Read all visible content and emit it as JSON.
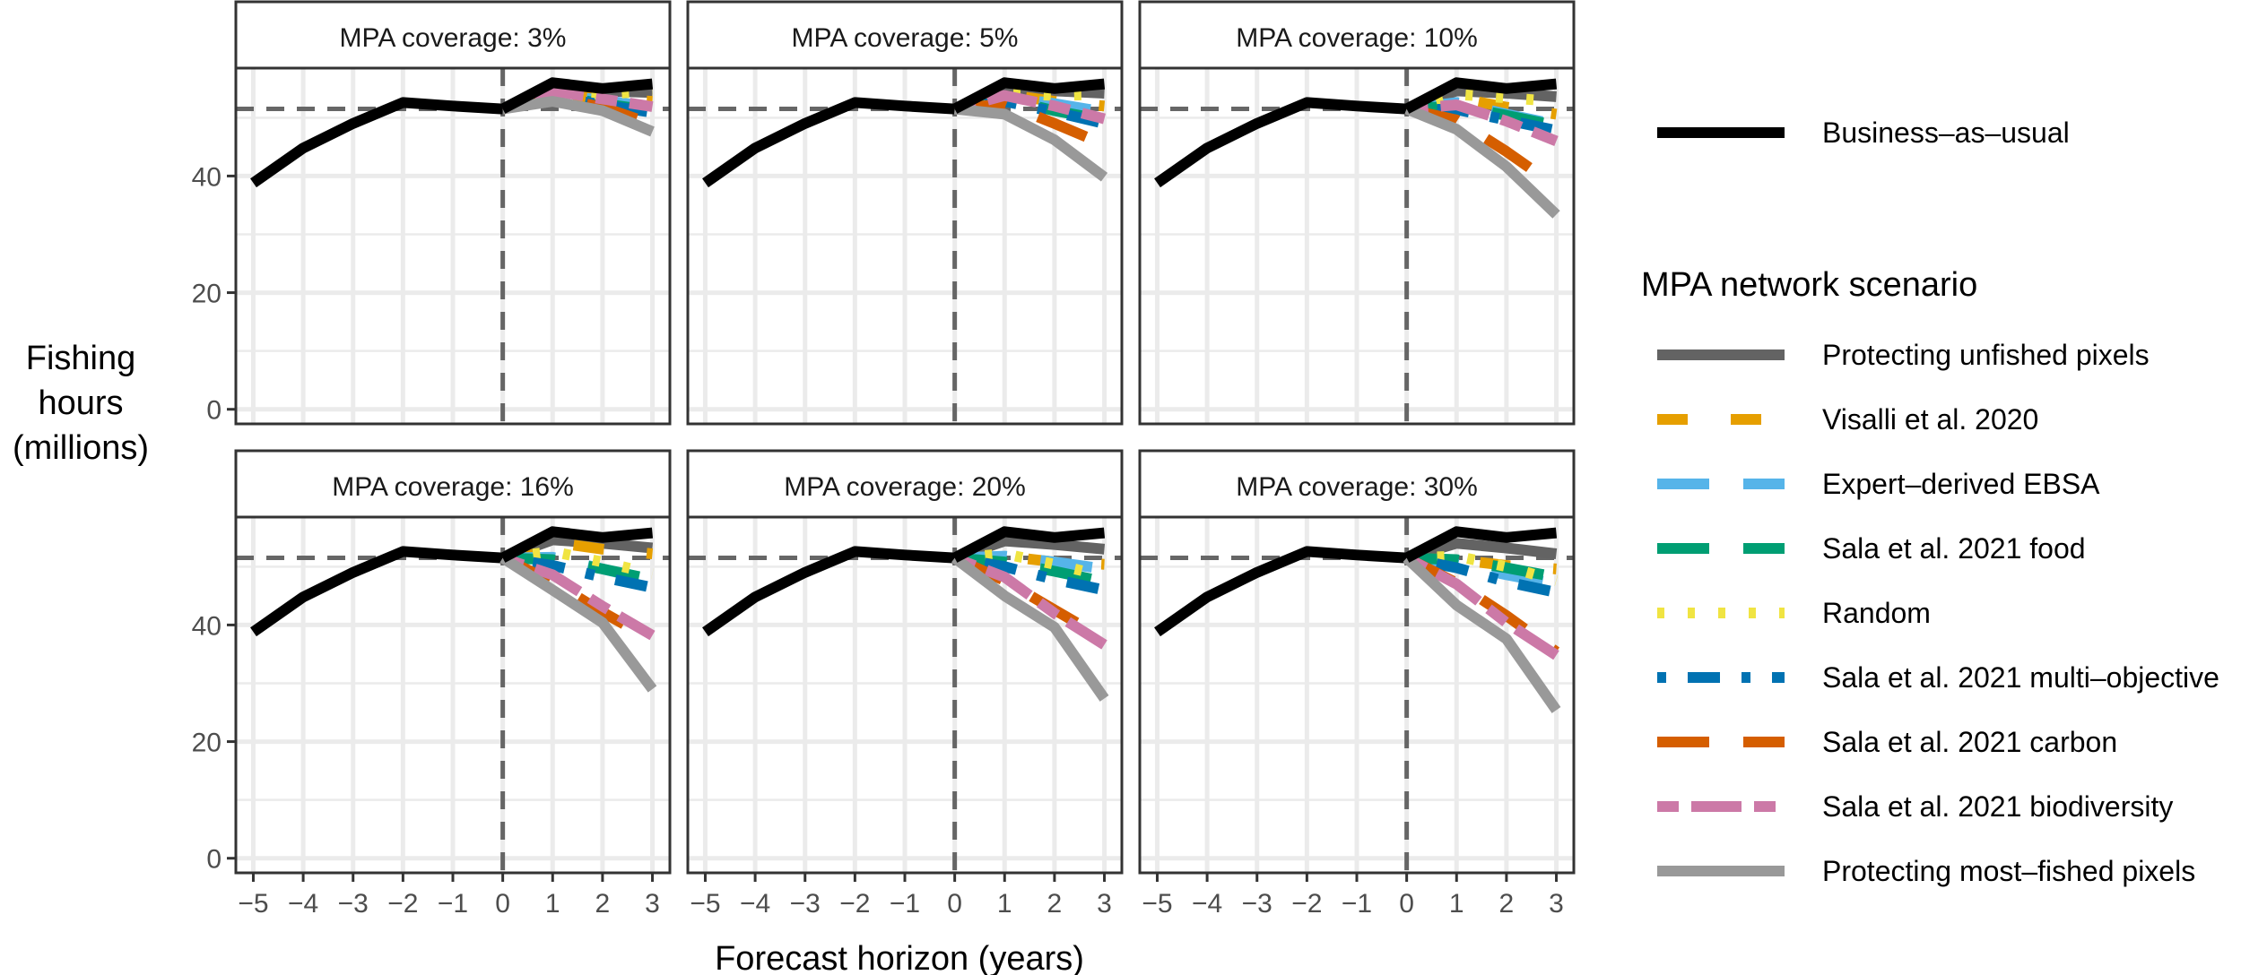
{
  "figure": {
    "ylabel_lines": [
      "Fishing",
      "hours",
      "(millions)"
    ],
    "xlabel": "Forecast horizon (years)",
    "legend_title": "MPA network scenario"
  },
  "styles": {
    "Business–as–usual": {
      "color": "#000000",
      "dash": "solid"
    },
    "Protecting unfished pixels": {
      "color": "#636363",
      "dash": "solid"
    },
    "Visalli et al. 2020": {
      "color": "#E69F00",
      "dash": "dashed"
    },
    "Expert–derived EBSA": {
      "color": "#56B4E9",
      "dash": "longdash"
    },
    "Sala et al. 2021 food": {
      "color": "#009E73",
      "dash": "longdash"
    },
    "Random": {
      "color": "#F0E442",
      "dash": "dotted"
    },
    "Sala et al. 2021 multi–objective": {
      "color": "#0072B2",
      "dash": "dotdash"
    },
    "Sala et al. 2021 carbon": {
      "color": "#D55E00",
      "dash": "longdash"
    },
    "Sala et al. 2021 biodiversity": {
      "color": "#CC79A7",
      "dash": "twodash"
    },
    "Protecting most–fished pixels": {
      "color": "#999999",
      "dash": "solid"
    }
  },
  "legend": {
    "bau_label": "Business–as–usual",
    "scenario_labels": [
      "Protecting unfished pixels",
      "Visalli et al. 2020",
      "Expert–derived EBSA",
      "Sala et al. 2021 food",
      "Random",
      "Sala et al. 2021 multi–objective",
      "Sala et al. 2021 carbon",
      "Sala et al. 2021 biodiversity",
      "Protecting most–fished pixels"
    ]
  },
  "chart_data": {
    "type": "line",
    "facet_strip_labels": [
      "MPA coverage: 3%",
      "MPA coverage: 5%",
      "MPA coverage: 10%",
      "MPA coverage: 16%",
      "MPA coverage: 20%",
      "MPA coverage: 30%"
    ],
    "xlabel": "Forecast horizon (years)",
    "ylabel": "Fishing hours (millions)",
    "x_ticks": [
      -5,
      -4,
      -3,
      -2,
      -1,
      0,
      1,
      2,
      3
    ],
    "x_tick_labels": [
      "−5",
      "−4",
      "−3",
      "−2",
      "−1",
      "0",
      "1",
      "2",
      "3"
    ],
    "y_ticks": [
      0,
      20,
      40
    ],
    "xlim": [
      -5.35,
      3.35
    ],
    "ylim": [
      -2.5,
      58.5
    ],
    "vline_x": 0,
    "hline_y": 51.5,
    "grid": true,
    "legend_position": "right",
    "history": {
      "x": [
        -5,
        -4,
        -3,
        -2,
        -1,
        0
      ],
      "y": [
        38.8,
        44.8,
        49.0,
        52.6,
        52.0,
        51.5
      ]
    },
    "forecast_x": [
      0,
      1,
      2,
      3
    ],
    "panels": [
      {
        "label": "MPA coverage: 3%",
        "series": [
          {
            "name": "Business–as–usual",
            "values": [
              51.5,
              56.0,
              55.0,
              55.8
            ]
          },
          {
            "name": "Protecting unfished pixels",
            "values": [
              51.5,
              55.0,
              54.6,
              54.3
            ]
          },
          {
            "name": "Visalli et al. 2020",
            "values": [
              51.5,
              54.3,
              53.2,
              52.8
            ]
          },
          {
            "name": "Expert–derived EBSA",
            "values": [
              51.5,
              54.0,
              53.0,
              51.8
            ]
          },
          {
            "name": "Sala et al. 2021 food",
            "values": [
              51.5,
              53.8,
              52.4,
              51.2
            ]
          },
          {
            "name": "Random",
            "values": [
              51.5,
              54.4,
              54.0,
              54.6
            ]
          },
          {
            "name": "Sala et al. 2021 multi–objective",
            "values": [
              51.5,
              53.6,
              52.2,
              50.9
            ]
          },
          {
            "name": "Sala et al. 2021 carbon",
            "values": [
              51.5,
              53.5,
              51.8,
              48.9
            ]
          },
          {
            "name": "Sala et al. 2021 biodiversity",
            "values": [
              51.5,
              54.6,
              53.2,
              51.9
            ]
          },
          {
            "name": "Protecting most–fished pixels",
            "values": [
              51.5,
              52.8,
              51.2,
              47.6
            ]
          }
        ]
      },
      {
        "label": "MPA coverage: 5%",
        "series": [
          {
            "name": "Business–as–usual",
            "values": [
              51.5,
              56.0,
              55.0,
              55.8
            ]
          },
          {
            "name": "Protecting unfished pixels",
            "values": [
              51.5,
              54.8,
              54.6,
              54.2
            ]
          },
          {
            "name": "Visalli et al. 2020",
            "values": [
              51.5,
              54.0,
              52.8,
              52.0
            ]
          },
          {
            "name": "Expert–derived EBSA",
            "values": [
              51.5,
              53.6,
              52.4,
              51.0
            ]
          },
          {
            "name": "Sala et al. 2021 food",
            "values": [
              51.5,
              53.2,
              51.2,
              49.6
            ]
          },
          {
            "name": "Random",
            "values": [
              51.5,
              54.2,
              53.8,
              54.0
            ]
          },
          {
            "name": "Sala et al. 2021 multi–objective",
            "values": [
              51.5,
              52.8,
              51.0,
              49.0
            ]
          },
          {
            "name": "Sala et al. 2021 carbon",
            "values": [
              51.5,
              52.4,
              49.0,
              45.4
            ]
          },
          {
            "name": "Sala et al. 2021 biodiversity",
            "values": [
              51.5,
              53.8,
              52.0,
              49.8
            ]
          },
          {
            "name": "Protecting most–fished pixels",
            "values": [
              51.5,
              50.6,
              46.2,
              39.8
            ]
          }
        ]
      },
      {
        "label": "MPA coverage: 10%",
        "series": [
          {
            "name": "Business–as–usual",
            "values": [
              51.5,
              56.0,
              55.0,
              55.8
            ]
          },
          {
            "name": "Protecting unfished pixels",
            "values": [
              51.5,
              54.6,
              54.2,
              53.6
            ]
          },
          {
            "name": "Visalli et al. 2020",
            "values": [
              51.5,
              53.4,
              51.8,
              50.6
            ]
          },
          {
            "name": "Expert–derived EBSA",
            "values": [
              51.5,
              52.6,
              50.6,
              48.8
            ]
          },
          {
            "name": "Sala et al. 2021 food",
            "values": [
              51.5,
              52.0,
              50.4,
              48.6
            ]
          },
          {
            "name": "Random",
            "values": [
              51.5,
              54.0,
              53.4,
              52.8
            ]
          },
          {
            "name": "Sala et al. 2021 multi–objective",
            "values": [
              51.5,
              51.4,
              49.6,
              47.8
            ]
          },
          {
            "name": "Sala et al. 2021 carbon",
            "values": [
              51.5,
              49.6,
              44.2,
              38.2
            ]
          },
          {
            "name": "Sala et al. 2021 biodiversity",
            "values": [
              51.5,
              52.2,
              49.4,
              46.0
            ]
          },
          {
            "name": "Protecting most–fished pixels",
            "values": [
              51.5,
              48.0,
              41.6,
              33.4
            ]
          }
        ]
      },
      {
        "label": "MPA coverage: 16%",
        "series": [
          {
            "name": "Business–as–usual",
            "values": [
              51.5,
              56.0,
              55.0,
              55.8
            ]
          },
          {
            "name": "Protecting unfished pixels",
            "values": [
              51.5,
              54.6,
              54.0,
              53.2
            ]
          },
          {
            "name": "Visalli et al. 2020",
            "values": [
              51.5,
              54.2,
              53.0,
              52.2
            ]
          },
          {
            "name": "Expert–derived EBSA",
            "values": [
              51.5,
              51.6,
              49.6,
              47.6
            ]
          },
          {
            "name": "Sala et al. 2021 food",
            "values": [
              51.5,
              51.2,
              49.6,
              47.8
            ]
          },
          {
            "name": "Random",
            "values": [
              51.5,
              52.6,
              50.8,
              48.8
            ]
          },
          {
            "name": "Sala et al. 2021 multi–objective",
            "values": [
              51.5,
              50.2,
              48.2,
              46.4
            ]
          },
          {
            "name": "Sala et al. 2021 carbon",
            "values": [
              51.5,
              47.4,
              42.2,
              37.4
            ]
          },
          {
            "name": "Sala et al. 2021 biodiversity",
            "values": [
              51.5,
              48.6,
              43.2,
              38.2
            ]
          },
          {
            "name": "Protecting most–fished pixels",
            "values": [
              51.5,
              46.0,
              40.4,
              29.0
            ]
          }
        ]
      },
      {
        "label": "MPA coverage: 20%",
        "series": [
          {
            "name": "Business–as–usual",
            "values": [
              51.5,
              56.0,
              55.0,
              55.8
            ]
          },
          {
            "name": "Protecting unfished pixels",
            "values": [
              51.5,
              54.4,
              53.8,
              53.0
            ]
          },
          {
            "name": "Visalli et al. 2020",
            "values": [
              51.5,
              51.8,
              50.8,
              50.4
            ]
          },
          {
            "name": "Expert–derived EBSA",
            "values": [
              51.5,
              51.8,
              50.8,
              49.6
            ]
          },
          {
            "name": "Sala et al. 2021 food",
            "values": [
              51.5,
              50.8,
              49.2,
              47.4
            ]
          },
          {
            "name": "Random",
            "values": [
              51.5,
              52.2,
              50.4,
              48.4
            ]
          },
          {
            "name": "Sala et al. 2021 multi–objective",
            "values": [
              51.5,
              50.0,
              47.8,
              46.0
            ]
          },
          {
            "name": "Sala et al. 2021 carbon",
            "values": [
              51.5,
              47.6,
              42.6,
              37.6
            ]
          },
          {
            "name": "Sala et al. 2021 biodiversity",
            "values": [
              51.5,
              48.2,
              42.0,
              36.6
            ]
          },
          {
            "name": "Protecting most–fished pixels",
            "values": [
              51.5,
              45.0,
              39.6,
              27.4
            ]
          }
        ]
      },
      {
        "label": "MPA coverage: 30%",
        "series": [
          {
            "name": "Business–as–usual",
            "values": [
              51.5,
              56.0,
              55.0,
              55.8
            ]
          },
          {
            "name": "Protecting unfished pixels",
            "values": [
              51.5,
              54.0,
              53.2,
              52.2
            ]
          },
          {
            "name": "Visalli et al. 2020",
            "values": [
              51.5,
              51.2,
              50.2,
              49.6
            ]
          },
          {
            "name": "Expert–derived EBSA",
            "values": [
              51.5,
              50.4,
              48.6,
              47.0
            ]
          },
          {
            "name": "Sala et al. 2021 food",
            "values": [
              51.5,
              51.2,
              49.8,
              48.2
            ]
          },
          {
            "name": "Random",
            "values": [
              51.5,
              51.8,
              50.0,
              47.6
            ]
          },
          {
            "name": "Sala et al. 2021 multi–objective",
            "values": [
              51.5,
              49.8,
              47.4,
              45.6
            ]
          },
          {
            "name": "Sala et al. 2021 carbon",
            "values": [
              51.5,
              47.2,
              41.6,
              35.4
            ]
          },
          {
            "name": "Sala et al. 2021 biodiversity",
            "values": [
              51.5,
              47.0,
              40.4,
              34.8
            ]
          },
          {
            "name": "Protecting most–fished pixels",
            "values": [
              51.5,
              43.4,
              37.6,
              25.4
            ]
          }
        ]
      }
    ]
  }
}
